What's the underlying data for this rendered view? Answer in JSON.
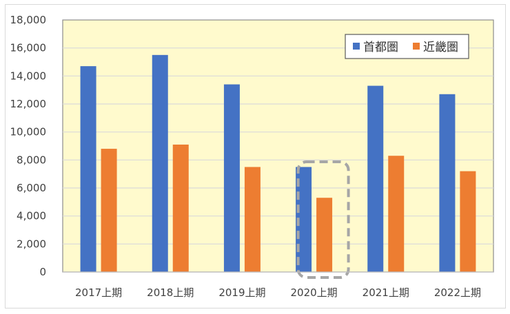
{
  "chart_data": {
    "type": "bar",
    "title": "",
    "xlabel": "",
    "ylabel": "",
    "categories": [
      "2017上期",
      "2018上期",
      "2019上期",
      "2020上期",
      "2021上期",
      "2022上期"
    ],
    "series": [
      {
        "name": "首都圏",
        "color": "#4472c4",
        "values": [
          14700,
          15500,
          13400,
          7500,
          13300,
          12700
        ]
      },
      {
        "name": "近畿圏",
        "color": "#ed7d31",
        "values": [
          8800,
          9100,
          7500,
          5300,
          8300,
          7200
        ]
      }
    ],
    "ylim": [
      0,
      18000
    ],
    "yticks": [
      0,
      2000,
      4000,
      6000,
      8000,
      10000,
      12000,
      14000,
      16000,
      18000
    ],
    "ytick_labels": [
      "0",
      "2,000",
      "4,000",
      "6,000",
      "8,000",
      "10,000",
      "12,000",
      "14,000",
      "16,000",
      "18,000"
    ],
    "grid": true,
    "legend": "top-right",
    "plot_background": "#fffacd",
    "highlight_category": "2020上期"
  }
}
